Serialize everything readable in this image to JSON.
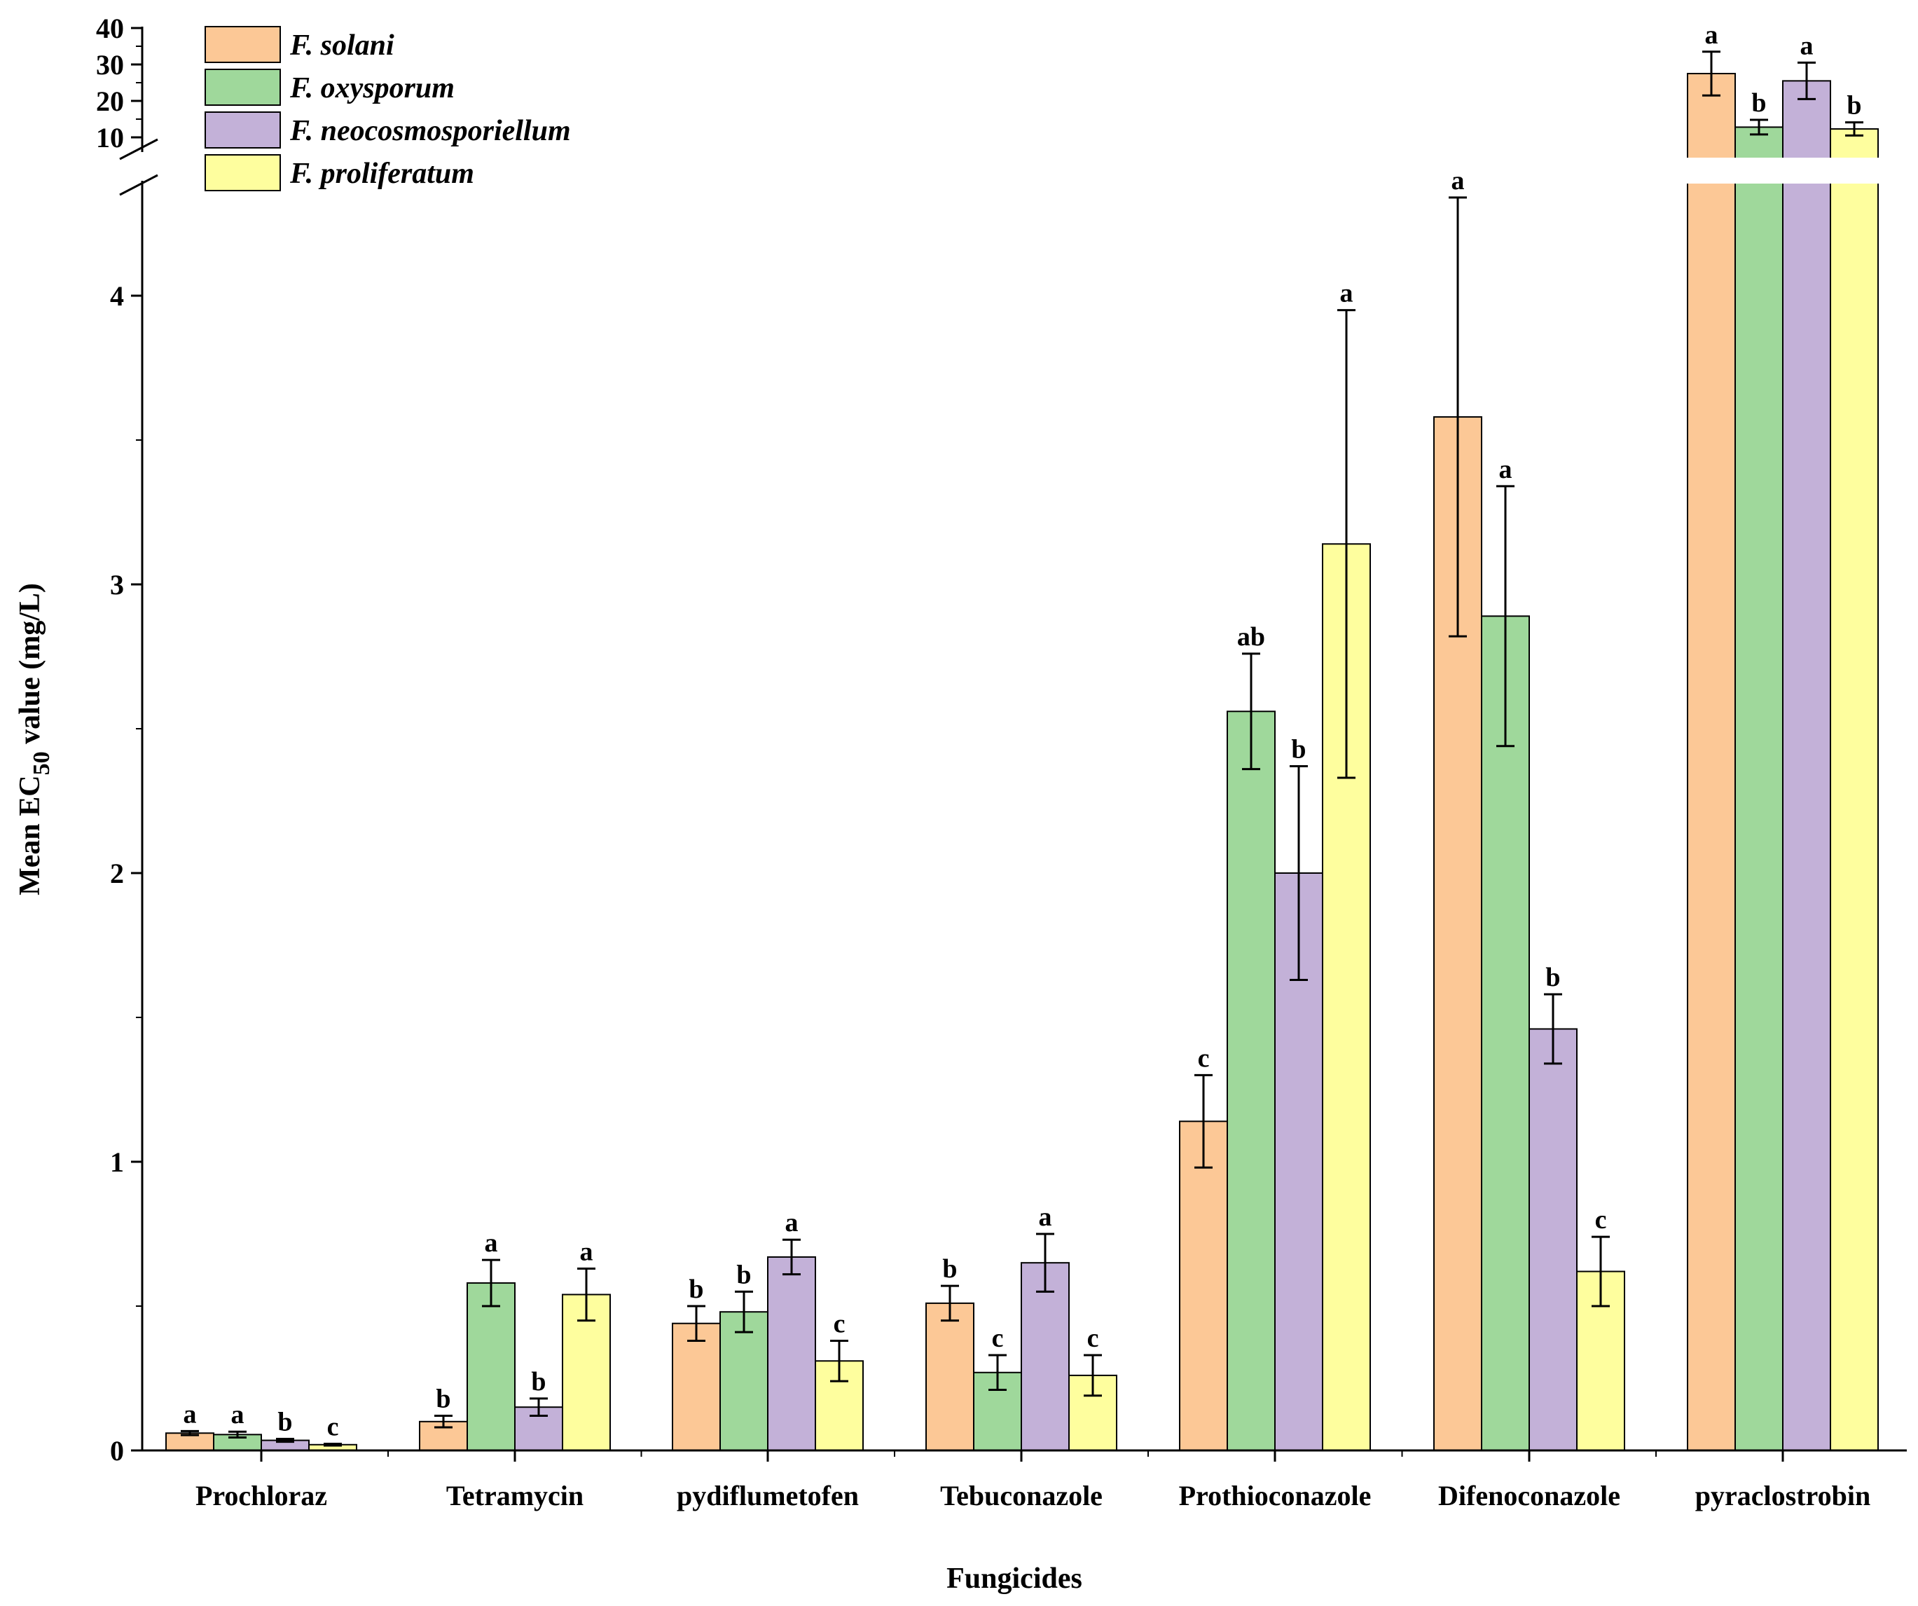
{
  "chart_data": {
    "type": "bar",
    "xlabel": "Fungicides",
    "ylabel_main": "Mean EC",
    "ylabel_sub": "50",
    "ylabel_tail": " value (mg/L)",
    "categories": [
      "Prochloraz",
      "Tetramycin",
      "pydiflumetofen",
      "Tebuconazole",
      "Prothioconazole",
      "Difenoconazole",
      "pyraclostrobin"
    ],
    "y_lower_ticks": [
      "0",
      "1",
      "2",
      "3",
      "4"
    ],
    "y_lower_range": [
      0,
      4.5
    ],
    "y_upper_ticks": [
      "10",
      "20",
      "30",
      "40"
    ],
    "y_upper_range": [
      5,
      40
    ],
    "y_axis_break": true,
    "legend_position": "top-left",
    "grid": false,
    "series": [
      {
        "name": "F. solani",
        "color": "#fcc896",
        "values": [
          0.06,
          0.1,
          0.44,
          0.51,
          1.14,
          3.58,
          27.5
        ],
        "errors": [
          0.007,
          0.02,
          0.06,
          0.06,
          0.16,
          0.76,
          6.0
        ],
        "letters": [
          "a",
          "b",
          "b",
          "b",
          "c",
          "a",
          "a"
        ]
      },
      {
        "name": "F. oxysporum",
        "color": "#9fd89b",
        "values": [
          0.055,
          0.58,
          0.48,
          0.27,
          2.56,
          2.89,
          12.8
        ],
        "errors": [
          0.01,
          0.08,
          0.07,
          0.06,
          0.2,
          0.45,
          2.0
        ],
        "letters": [
          "a",
          "a",
          "b",
          "c",
          "ab",
          "a",
          "b"
        ]
      },
      {
        "name": "F. neocosmosporiellum",
        "color": "#c3b1d8",
        "values": [
          0.035,
          0.15,
          0.67,
          0.65,
          2.0,
          1.46,
          25.5
        ],
        "errors": [
          0.005,
          0.03,
          0.06,
          0.1,
          0.37,
          0.12,
          5.0
        ],
        "letters": [
          "b",
          "b",
          "a",
          "a",
          "b",
          "b",
          "a"
        ]
      },
      {
        "name": "F. proliferatum",
        "color": "#fefe9e",
        "values": [
          0.02,
          0.54,
          0.31,
          0.26,
          3.14,
          0.62,
          12.3
        ],
        "errors": [
          0.003,
          0.09,
          0.07,
          0.07,
          0.81,
          0.12,
          1.8
        ],
        "letters": [
          "c",
          "a",
          "c",
          "c",
          "a",
          "c",
          "b"
        ]
      }
    ]
  }
}
